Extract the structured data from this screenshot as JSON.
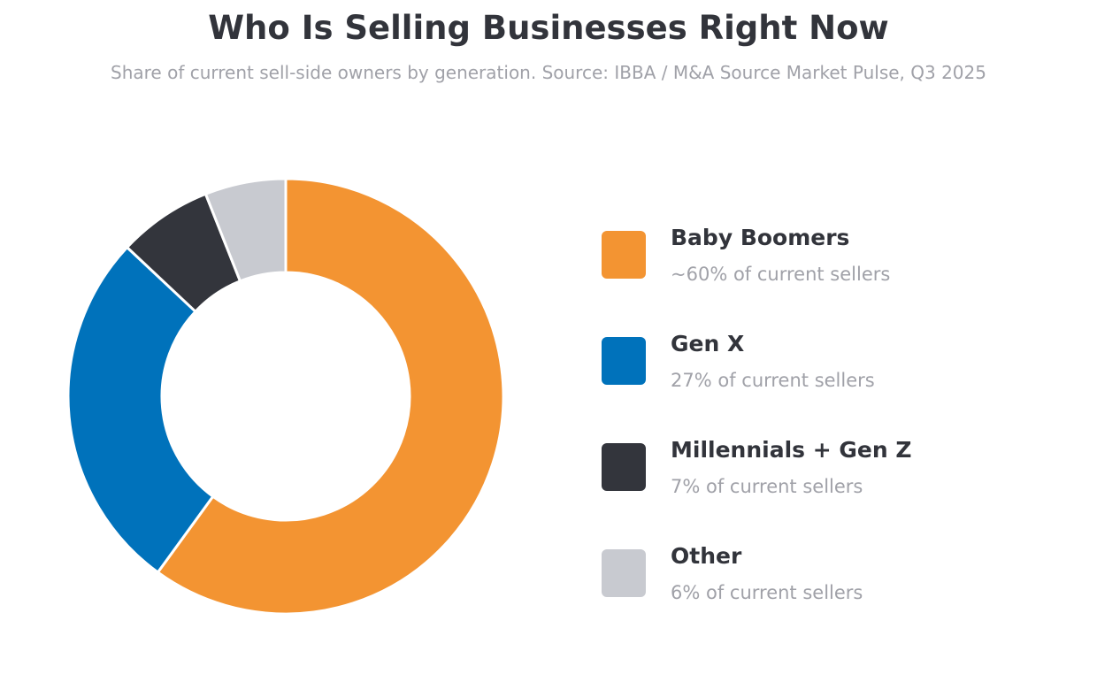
{
  "title": "Who Is Selling Businesses Right Now",
  "subtitle": "Share of current sell-side owners by generation. Source: IBBA / M&A Source Market Pulse, Q3 2025",
  "chart_data": {
    "type": "pie",
    "donut": true,
    "title": "Who Is Selling Businesses Right Now",
    "subtitle": "Share of current sell-side owners by generation. Source: IBBA / M&A Source Market Pulse, Q3 2025",
    "legend_position": "right",
    "categories": [
      "Baby Boomers",
      "Gen X",
      "Millennials + Gen Z",
      "Other"
    ],
    "values": [
      60,
      27,
      7,
      6
    ],
    "colors": [
      "#f39432",
      "#0072bb",
      "#33353c",
      "#c8cad0"
    ]
  },
  "legend": [
    {
      "name": "Baby Boomers",
      "desc": "~60% of current sellers",
      "color": "#f39432"
    },
    {
      "name": "Gen X",
      "desc": "27% of current sellers",
      "color": "#0072bb"
    },
    {
      "name": "Millennials + Gen Z",
      "desc": "7% of current sellers",
      "color": "#33353c"
    },
    {
      "name": "Other",
      "desc": "6% of current sellers",
      "color": "#c8cad0"
    }
  ]
}
